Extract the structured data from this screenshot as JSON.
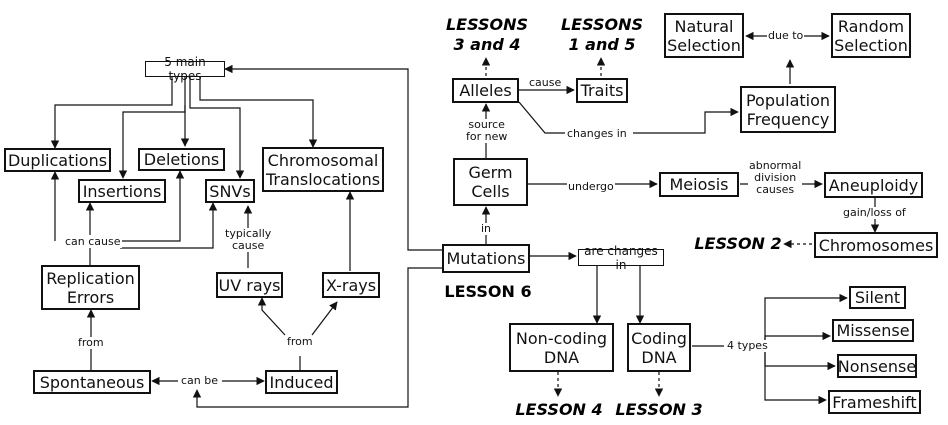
{
  "nodes": {
    "five_main_types": "5 main types",
    "duplications": "Duplications",
    "insertions": "Insertions",
    "deletions": "Deletions",
    "snvs": "SNVs",
    "chromosomal_translocations": "Chromosomal\nTranslocations",
    "replication_errors": "Replication\nErrors",
    "uv_rays": "UV rays",
    "x_rays": "X-rays",
    "spontaneous": "Spontaneous",
    "induced": "Induced",
    "alleles": "Alleles",
    "traits": "Traits",
    "germ_cells": "Germ\nCells",
    "mutations": "Mutations",
    "meiosis": "Meiosis",
    "aneuploidy": "Aneuploidy",
    "chromosomes": "Chromosomes",
    "natural_selection": "Natural\nSelection",
    "random_selection": "Random\nSelection",
    "population_frequency": "Population\nFrequency",
    "are_changes_in": "are changes in",
    "non_coding_dna": "Non-coding\nDNA",
    "coding_dna": "Coding\nDNA",
    "silent": "Silent",
    "missense": "Missense",
    "nonsense": "Nonsense",
    "frameshift": "Frameshift"
  },
  "edge_labels": {
    "can_cause": "can cause",
    "typically_cause": "typically\ncause",
    "from_left": "from",
    "from_right": "from",
    "can_be": "can be",
    "cause": "cause",
    "source_for_new": "source\nfor new",
    "changes_in": "changes in",
    "undergo": "undergo",
    "in": "in",
    "abnormal_division_causes": "abnormal\ndivision\ncauses",
    "gain_loss_of": "gain/loss of",
    "due_to": "due to",
    "four_types": "4 types"
  },
  "lessons": {
    "lessons_3_and_4": "LESSONS\n3 and 4",
    "lessons_1_and_5": "LESSONS\n1 and 5",
    "lesson_2": "LESSON 2",
    "lesson_6": "LESSON 6",
    "lesson_4": "LESSON 4",
    "lesson_3": "LESSON 3"
  }
}
